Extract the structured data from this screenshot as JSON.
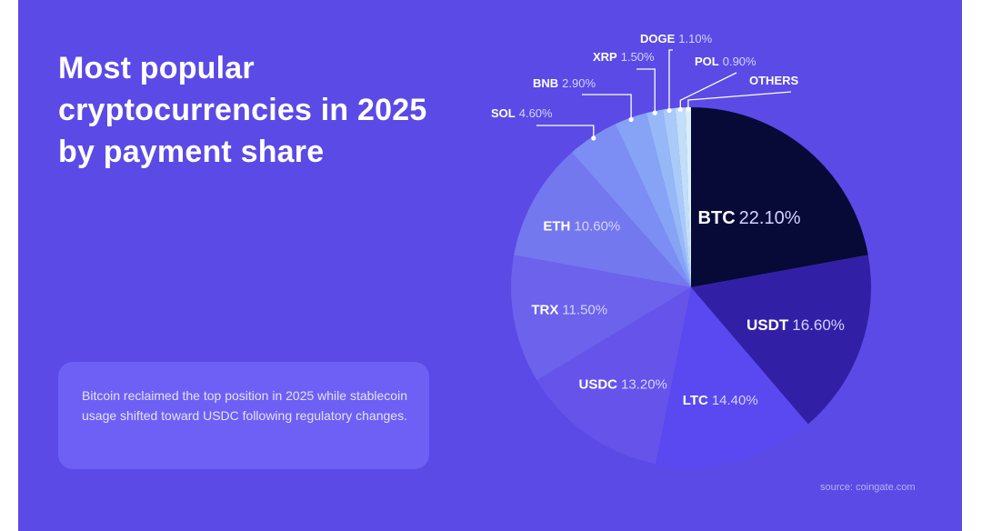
{
  "title": "Most popular cryptocurrencies in 2025 by payment share",
  "note": "Bitcoin reclaimed the top position in 2025 while stablecoin usage shifted toward USDC following regulatory changes.",
  "source": "source: coingate.com",
  "colors": {
    "background": "#5b4ae6",
    "note_box": "#6e60f4",
    "label_name": "#ffffff",
    "label_value": "#d6d2ff"
  },
  "chart_data": {
    "type": "pie",
    "title": "Most popular cryptocurrencies in 2025 by payment share",
    "slices": [
      {
        "name": "BTC",
        "value_label": "22.10%",
        "value": 22.1,
        "color": "#070a36"
      },
      {
        "name": "USDT",
        "value_label": "16.60%",
        "value": 16.6,
        "color": "#3120a6"
      },
      {
        "name": "LTC",
        "value_label": "14.40%",
        "value": 14.4,
        "color": "#5a48f0"
      },
      {
        "name": "USDC",
        "value_label": "13.20%",
        "value": 13.2,
        "color": "#6553ea"
      },
      {
        "name": "TRX",
        "value_label": "11.50%",
        "value": 11.5,
        "color": "#6c62ec"
      },
      {
        "name": "ETH",
        "value_label": "10.60%",
        "value": 10.6,
        "color": "#7478ef"
      },
      {
        "name": "SOL",
        "value_label": "4.60%",
        "value": 4.6,
        "color": "#7c8ef3"
      },
      {
        "name": "BNB",
        "value_label": "2.90%",
        "value": 2.9,
        "color": "#86a3f5"
      },
      {
        "name": "XRP",
        "value_label": "1.50%",
        "value": 1.5,
        "color": "#96b8f7"
      },
      {
        "name": "DOGE",
        "value_label": "1.10%",
        "value": 1.1,
        "color": "#aacbfa"
      },
      {
        "name": "POL",
        "value_label": "0.90%",
        "value": 0.9,
        "color": "#c2def9"
      },
      {
        "name": "OTHERS",
        "value_label": "",
        "value": 0.5,
        "color": "#dbeefb"
      }
    ]
  }
}
